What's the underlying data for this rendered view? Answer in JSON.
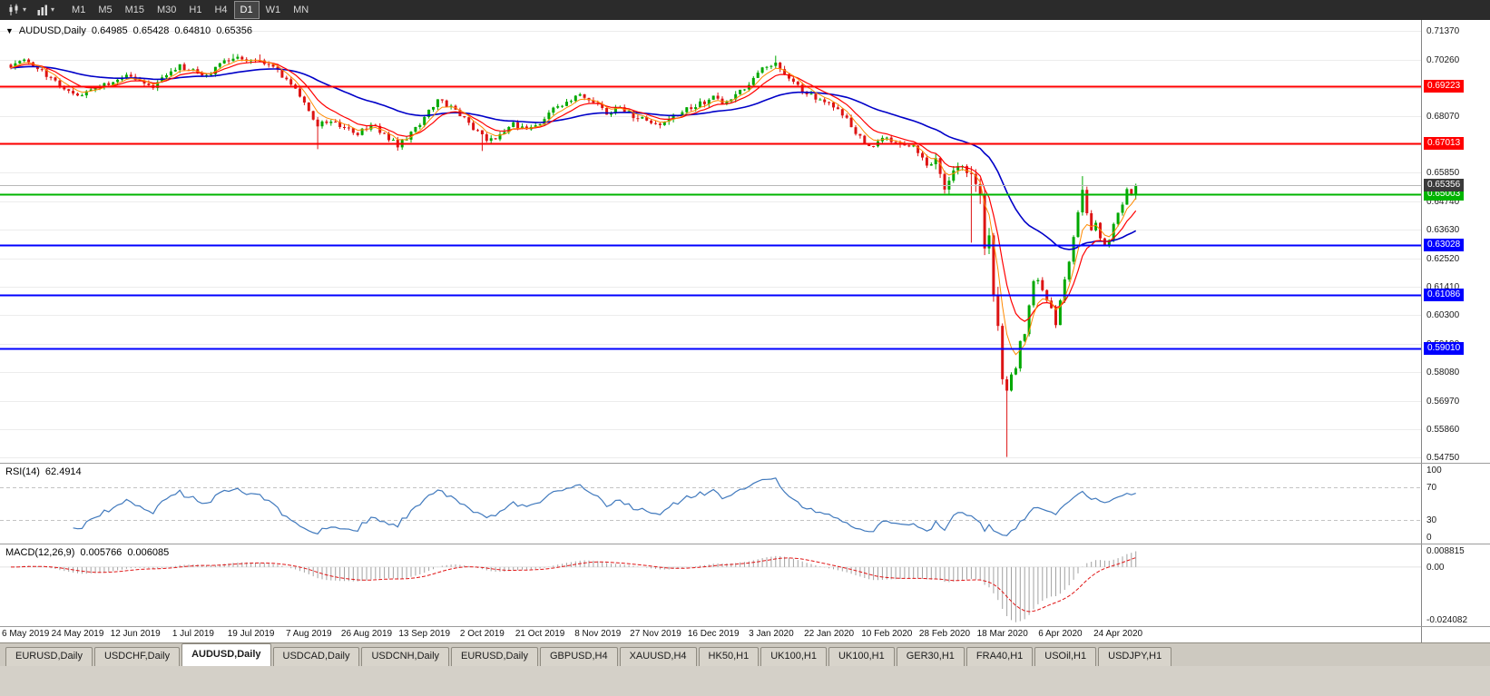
{
  "toolbar": {
    "timeframes": [
      "M1",
      "M5",
      "M15",
      "M30",
      "H1",
      "H4",
      "D1",
      "W1",
      "MN"
    ],
    "active_timeframe": "D1",
    "icon_buttons": [
      {
        "icon": "candlestick-chart",
        "caret": "▾"
      },
      {
        "icon": "bar-chart",
        "caret": "▾"
      }
    ]
  },
  "chart": {
    "menu_caret": "▼",
    "symbol_title": "AUDUSD,Daily",
    "ohlc": {
      "open": "0.64985",
      "high": "0.65428",
      "low": "0.64810",
      "close": "0.65356"
    },
    "current_price": {
      "label": "0.65356",
      "price": 0.65356,
      "color": "#3a3a3a"
    },
    "hlines": [
      {
        "label": "0.69223",
        "price": 0.69223,
        "color": "#ff0000"
      },
      {
        "label": "0.67013",
        "price": 0.67013,
        "color": "#ff0000"
      },
      {
        "label": "0.65003",
        "price": 0.65003,
        "color": "#00b400"
      },
      {
        "label": "0.63028",
        "price": 0.63028,
        "color": "#0000ff"
      },
      {
        "label": "0.61086",
        "price": 0.61086,
        "color": "#0000ff"
      },
      {
        "label": "0.59010",
        "price": 0.5901,
        "color": "#0000ff"
      }
    ]
  },
  "rsi_panel": {
    "name": "RSI(14)",
    "value": "62.4914",
    "axis": [
      "100",
      "70",
      "30",
      "0"
    ]
  },
  "macd_panel": {
    "name": "MACD(12,26,9)",
    "values": [
      "0.005766",
      "0.006085"
    ],
    "axis": [
      "0.008815",
      "0.00",
      "-0.024082"
    ]
  },
  "tabs": {
    "active_index": 2,
    "items": [
      "EURUSD,Daily",
      "USDCHF,Daily",
      "AUDUSD,Daily",
      "USDCAD,Daily",
      "USDCNH,Daily",
      "EURUSD,Daily",
      "GBPUSD,H4",
      "XAUUSD,H4",
      "HK50,H1",
      "UK100,H1",
      "UK100,H1",
      "GER30,H1",
      "FRA40,H1",
      "USOil,H1",
      "USDJPY,H1"
    ]
  },
  "chart_data": {
    "type": "candlestick",
    "symbol": "AUDUSD",
    "timeframe": "Daily",
    "candle_count": 254,
    "ylim": [
      0.54553,
      0.71804
    ],
    "last_candle": {
      "o": 0.64985,
      "h": 0.65428,
      "l": 0.6481,
      "c": 0.65356
    },
    "price_ticks": [
      "0.71370",
      "0.70260",
      "0.69150",
      "0.68070",
      "0.66960",
      "0.65850",
      "0.64740",
      "0.63630",
      "0.62520",
      "0.61410",
      "0.60300",
      "0.59190",
      "0.58080",
      "0.56970",
      "0.55860",
      "0.54750"
    ],
    "levels": [
      0.69223,
      0.67013,
      0.65003,
      0.63028,
      0.61086,
      0.5901
    ],
    "x_labels": [
      "6 May 2019",
      "24 May 2019",
      "12 Jun 2019",
      "1 Jul 2019",
      "19 Jul 2019",
      "7 Aug 2019",
      "26 Aug 2019",
      "13 Sep 2019",
      "2 Oct 2019",
      "21 Oct 2019",
      "8 Nov 2019",
      "27 Nov 2019",
      "16 Dec 2019",
      "3 Jan 2020",
      "22 Jan 2020",
      "10 Feb 2020",
      "28 Feb 2020",
      "18 Mar 2020",
      "6 Apr 2020",
      "24 Apr 2020"
    ],
    "x_label_indices": [
      2,
      15,
      28,
      41,
      54,
      67,
      80,
      93,
      106,
      119,
      132,
      145,
      158,
      171,
      184,
      197,
      210,
      223,
      236,
      249
    ],
    "close_anchors": [
      [
        0,
        0.7
      ],
      [
        3,
        0.7018
      ],
      [
        6,
        0.6995
      ],
      [
        9,
        0.695
      ],
      [
        12,
        0.691
      ],
      [
        15,
        0.688
      ],
      [
        18,
        0.6902
      ],
      [
        22,
        0.693
      ],
      [
        26,
        0.6958
      ],
      [
        29,
        0.6938
      ],
      [
        32,
        0.6925
      ],
      [
        35,
        0.6962
      ],
      [
        38,
        0.6998
      ],
      [
        41,
        0.6988
      ],
      [
        44,
        0.6958
      ],
      [
        47,
        0.7005
      ],
      [
        50,
        0.7035
      ],
      [
        53,
        0.7012
      ],
      [
        56,
        0.7032
      ],
      [
        59,
        0.6992
      ],
      [
        62,
        0.6945
      ],
      [
        65,
        0.6885
      ],
      [
        67,
        0.6815
      ],
      [
        69,
        0.6765
      ],
      [
        72,
        0.6792
      ],
      [
        75,
        0.6762
      ],
      [
        78,
        0.6742
      ],
      [
        81,
        0.6772
      ],
      [
        84,
        0.6732
      ],
      [
        87,
        0.6692
      ],
      [
        90,
        0.6742
      ],
      [
        93,
        0.6802
      ],
      [
        96,
        0.6868
      ],
      [
        99,
        0.6842
      ],
      [
        102,
        0.6795
      ],
      [
        105,
        0.6745
      ],
      [
        107,
        0.6705
      ],
      [
        110,
        0.6732
      ],
      [
        113,
        0.6772
      ],
      [
        116,
        0.6752
      ],
      [
        119,
        0.6782
      ],
      [
        122,
        0.6832
      ],
      [
        125,
        0.6862
      ],
      [
        128,
        0.6888
      ],
      [
        131,
        0.6862
      ],
      [
        134,
        0.6822
      ],
      [
        137,
        0.6842
      ],
      [
        140,
        0.6802
      ],
      [
        143,
        0.6788
      ],
      [
        146,
        0.6762
      ],
      [
        149,
        0.6802
      ],
      [
        152,
        0.6832
      ],
      [
        155,
        0.6852
      ],
      [
        158,
        0.688
      ],
      [
        161,
        0.6852
      ],
      [
        164,
        0.6902
      ],
      [
        167,
        0.6952
      ],
      [
        170,
        0.7002
      ],
      [
        172,
        0.7022
      ],
      [
        175,
        0.6952
      ],
      [
        178,
        0.6902
      ],
      [
        181,
        0.6872
      ],
      [
        184,
        0.6852
      ],
      [
        187,
        0.6812
      ],
      [
        190,
        0.6742
      ],
      [
        193,
        0.6692
      ],
      [
        197,
        0.6722
      ],
      [
        200,
        0.6702
      ],
      [
        203,
        0.6682
      ],
      [
        206,
        0.6612
      ],
      [
        208,
        0.6635
      ],
      [
        210,
        0.652
      ],
      [
        212,
        0.6585
      ],
      [
        214,
        0.6612
      ],
      [
        216,
        0.658
      ],
      [
        218,
        0.6495
      ],
      [
        219,
        0.629
      ],
      [
        220,
        0.634
      ],
      [
        221,
        0.611
      ],
      [
        222,
        0.599
      ],
      [
        223,
        0.578
      ],
      [
        224,
        0.574
      ],
      [
        225,
        0.58
      ],
      [
        226,
        0.5825
      ],
      [
        227,
        0.593
      ],
      [
        228,
        0.596
      ],
      [
        229,
        0.607
      ],
      [
        230,
        0.616
      ],
      [
        231,
        0.617
      ],
      [
        232,
        0.613
      ],
      [
        233,
        0.609
      ],
      [
        234,
        0.606
      ],
      [
        235,
        0.599
      ],
      [
        236,
        0.609
      ],
      [
        237,
        0.616
      ],
      [
        238,
        0.623
      ],
      [
        239,
        0.634
      ],
      [
        240,
        0.642
      ],
      [
        241,
        0.652
      ],
      [
        242,
        0.643
      ],
      [
        243,
        0.636
      ],
      [
        244,
        0.639
      ],
      [
        245,
        0.633
      ],
      [
        246,
        0.629
      ],
      [
        247,
        0.633
      ],
      [
        248,
        0.638
      ],
      [
        249,
        0.642
      ],
      [
        250,
        0.6465
      ],
      [
        251,
        0.653
      ],
      [
        252,
        0.6499
      ],
      [
        253,
        0.65356
      ]
    ],
    "spikes": [
      [
        50,
        "H",
        0.7048
      ],
      [
        56,
        "H",
        0.7046
      ],
      [
        69,
        "L",
        0.6677
      ],
      [
        87,
        "L",
        0.6671
      ],
      [
        106,
        "L",
        0.667
      ],
      [
        128,
        "H",
        0.6897
      ],
      [
        172,
        "H",
        0.7041
      ],
      [
        216,
        "L",
        0.6313
      ],
      [
        224,
        "L",
        0.5478
      ],
      [
        241,
        "H",
        0.6572
      ]
    ],
    "indicators": {
      "rsi": {
        "period": 14,
        "last": 62.4914,
        "levels": [
          70,
          30
        ]
      },
      "macd": {
        "fast": 12,
        "slow": 26,
        "signal": 9,
        "last": [
          0.005766,
          0.006085
        ],
        "ylim": [
          -0.0248,
          0.0095
        ]
      },
      "moving_averages": [
        {
          "period": 5,
          "color": "#ff8a00",
          "width": 1
        },
        {
          "period": 10,
          "color": "#ff0000",
          "width": 1.2
        },
        {
          "period": 40,
          "color": "#0000c8",
          "width": 1.6
        }
      ]
    },
    "colors": {
      "up": "#00a800",
      "down": "#dd1414",
      "grid": "#ececec",
      "rsi_line": "#4079bd",
      "macd_hist": "#a2a2a2",
      "macd_signal": "#e01616",
      "bid_line": "#b8b8b8"
    }
  }
}
